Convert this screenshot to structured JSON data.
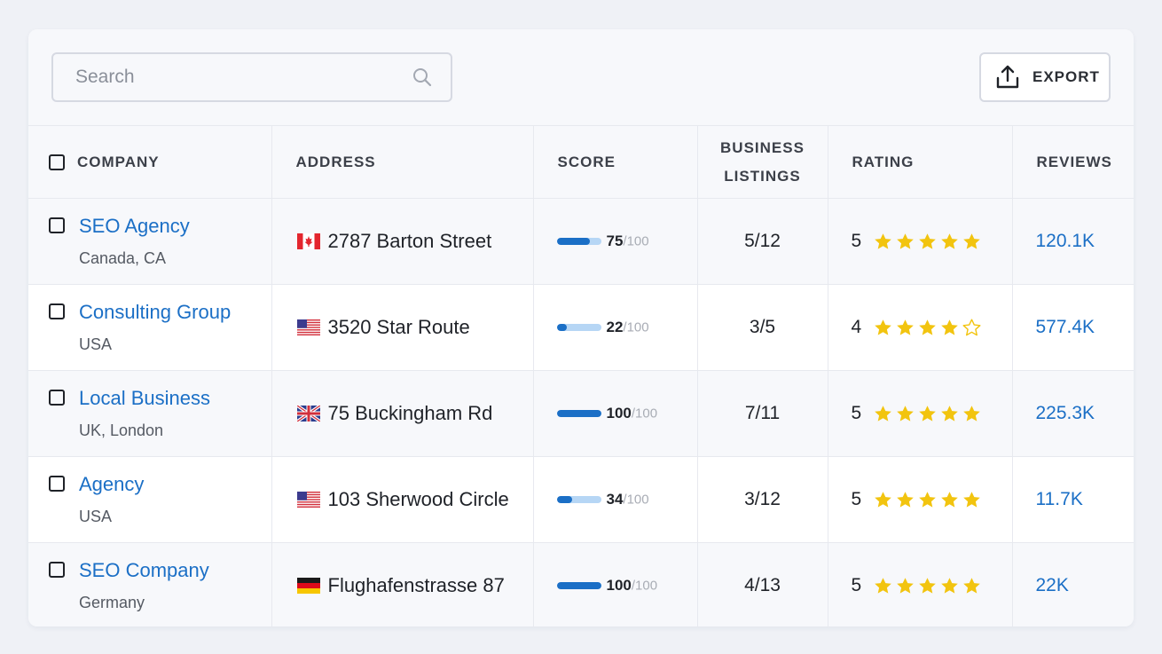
{
  "search": {
    "placeholder": "Search"
  },
  "export": {
    "label": "EXPORT"
  },
  "columns": {
    "company": "COMPANY",
    "address": "ADDRESS",
    "score": "SCORE",
    "listings_line1": "BUSINESS",
    "listings_line2": "LISTINGS",
    "rating": "RATING",
    "reviews": "REVIEWS"
  },
  "colors": {
    "link": "#1b6fc6",
    "star": "#f2c40f",
    "bar_fill": "#1b6fc6",
    "bar_track": "#b6d6f5"
  },
  "rows": [
    {
      "company": "SEO Agency",
      "location": "Canada, CA",
      "flag": "canada-flag-icon",
      "address": "2787 Barton Street",
      "score": "75",
      "score_max": "/100",
      "score_fraction": 0.75,
      "listings": "5/12",
      "rating": "5",
      "stars": 5,
      "reviews": "120.1K"
    },
    {
      "company": "Consulting Group",
      "location": "USA",
      "flag": "usa-flag-icon",
      "address": "3520 Star Route",
      "score": "22",
      "score_max": "/100",
      "score_fraction": 0.22,
      "listings": "3/5",
      "rating": "4",
      "stars": 4,
      "reviews": "577.4K"
    },
    {
      "company": "Local Business",
      "location": "UK, London",
      "flag": "uk-flag-icon",
      "address": "75 Buckingham Rd",
      "score": "100",
      "score_max": "/100",
      "score_fraction": 1.0,
      "listings": "7/11",
      "rating": "5",
      "stars": 5,
      "reviews": "225.3K"
    },
    {
      "company": "Agency",
      "location": "USA",
      "flag": "usa-flag-icon",
      "address": "103 Sherwood Circle",
      "score": "34",
      "score_max": "/100",
      "score_fraction": 0.34,
      "listings": "3/12",
      "rating": "5",
      "stars": 5,
      "reviews": "11.7K"
    },
    {
      "company": "SEO Company",
      "location": "Germany",
      "flag": "germany-flag-icon",
      "address": "Flughafenstrasse 87",
      "score": "100",
      "score_max": "/100",
      "score_fraction": 1.0,
      "listings": "4/13",
      "rating": "5",
      "stars": 5,
      "reviews": "22K"
    }
  ]
}
